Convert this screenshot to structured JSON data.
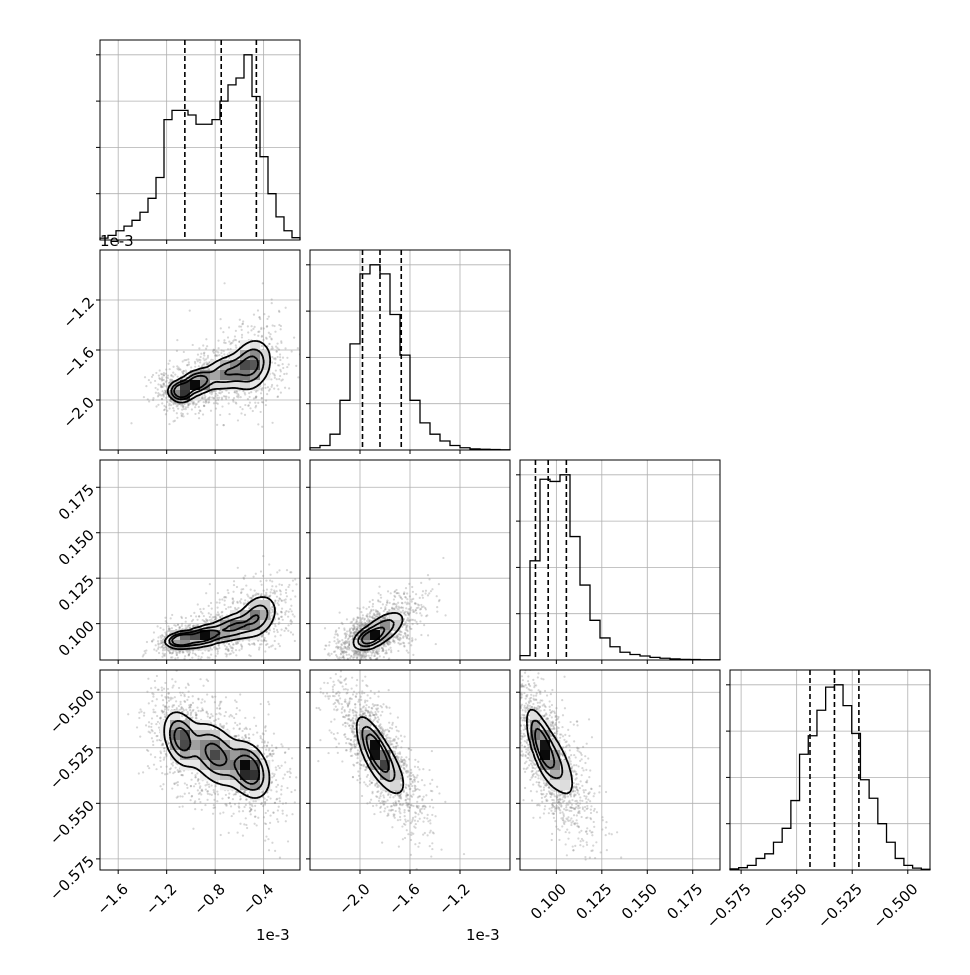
{
  "chart_data": {
    "type": "corner",
    "quantiles_style": "dashed",
    "grid": true,
    "offset_label": "1e-3",
    "params": [
      {
        "index": 0,
        "scale_label": "1e-3",
        "range": [
          -1.75,
          -0.1
        ],
        "ticks": [
          {
            "v": -1.6,
            "label": "−1.6"
          },
          {
            "v": -1.2,
            "label": "−1.2"
          },
          {
            "v": -0.8,
            "label": "−0.8"
          },
          {
            "v": -0.4,
            "label": "−0.4"
          }
        ],
        "hist_values": [
          0.008,
          0.02,
          0.04,
          0.06,
          0.085,
          0.12,
          0.18,
          0.27,
          0.52,
          0.56,
          0.56,
          0.54,
          0.5,
          0.5,
          0.52,
          0.6,
          0.67,
          0.7,
          0.8,
          0.62,
          0.36,
          0.2,
          0.1,
          0.04,
          0.01
        ],
        "quantiles": [
          -1.05,
          -0.75,
          -0.46
        ]
      },
      {
        "index": 1,
        "scale_label": "1e-3",
        "range": [
          -2.4,
          -0.8
        ],
        "ticks": [
          {
            "v": -2.0,
            "label": "−2.0"
          },
          {
            "v": -1.6,
            "label": "−1.6"
          },
          {
            "v": -1.2,
            "label": "−1.2"
          }
        ],
        "hist_values": [
          0.01,
          0.02,
          0.07,
          0.22,
          0.47,
          0.78,
          0.82,
          0.78,
          0.6,
          0.42,
          0.22,
          0.12,
          0.07,
          0.04,
          0.02,
          0.01,
          0.005,
          0.003,
          0.002,
          0.001
        ],
        "quantiles": [
          -1.98,
          -1.84,
          -1.67
        ]
      },
      {
        "index": 2,
        "scale_label": "",
        "range": [
          0.08,
          0.19
        ],
        "ticks": [
          {
            "v": 0.1,
            "label": "0.100"
          },
          {
            "v": 0.125,
            "label": "0.125"
          },
          {
            "v": 0.15,
            "label": "0.150"
          },
          {
            "v": 0.175,
            "label": "0.175"
          }
        ],
        "hist_values": [
          0.02,
          0.45,
          0.82,
          0.81,
          0.84,
          0.56,
          0.34,
          0.18,
          0.1,
          0.06,
          0.035,
          0.025,
          0.018,
          0.012,
          0.008,
          0.005,
          0.003,
          0.002,
          0.001,
          0.001
        ],
        "quantiles": [
          0.0885,
          0.0955,
          0.1055
        ]
      },
      {
        "index": 3,
        "scale_label": "",
        "range": [
          -0.58,
          -0.49
        ],
        "ticks": [
          {
            "v": -0.575,
            "label": "−0.575"
          },
          {
            "v": -0.55,
            "label": "−0.550"
          },
          {
            "v": -0.525,
            "label": "−0.525"
          },
          {
            "v": -0.5,
            "label": "−0.500"
          }
        ],
        "hist_values": [
          0.005,
          0.01,
          0.02,
          0.05,
          0.07,
          0.12,
          0.18,
          0.3,
          0.5,
          0.58,
          0.69,
          0.79,
          0.8,
          0.71,
          0.59,
          0.39,
          0.31,
          0.2,
          0.12,
          0.05,
          0.02,
          0.008,
          0.003
        ],
        "quantiles": [
          -0.544,
          -0.533,
          -0.522
        ]
      }
    ],
    "pairs": [
      {
        "x": 0,
        "y": 1,
        "yticks": [
          {
            "v": -1.2,
            "label": "−1.2"
          },
          {
            "v": -1.6,
            "label": "−1.6"
          },
          {
            "v": -2.0,
            "label": "−2.0"
          }
        ],
        "blobs": [
          {
            "cx": -1.08,
            "cy": -1.93,
            "sx": 0.05,
            "sy": 0.04,
            "rho": 0.0,
            "w": 0.9
          },
          {
            "cx": -0.95,
            "cy": -1.86,
            "sx": 0.07,
            "sy": 0.05,
            "rho": 0.3,
            "w": 0.75
          },
          {
            "cx": -0.7,
            "cy": -1.78,
            "sx": 0.1,
            "sy": 0.07,
            "rho": 0.3,
            "w": 0.45
          },
          {
            "cx": -0.5,
            "cy": -1.72,
            "sx": 0.08,
            "sy": 0.1,
            "rho": 0.2,
            "w": 0.55
          }
        ]
      },
      {
        "x": 0,
        "y": 2,
        "yticks": [
          {
            "v": 0.175,
            "label": "0.175"
          },
          {
            "v": 0.15,
            "label": "0.150"
          },
          {
            "v": 0.125,
            "label": "0.125"
          },
          {
            "v": 0.1,
            "label": "0.100"
          }
        ],
        "blobs": [
          {
            "cx": -1.08,
            "cy": 0.091,
            "sx": 0.06,
            "sy": 0.002,
            "rho": 0.2,
            "w": 0.85
          },
          {
            "cx": -0.9,
            "cy": 0.093,
            "sx": 0.09,
            "sy": 0.003,
            "rho": 0.4,
            "w": 0.6
          },
          {
            "cx": -0.65,
            "cy": 0.098,
            "sx": 0.1,
            "sy": 0.004,
            "rho": 0.4,
            "w": 0.4
          },
          {
            "cx": -0.45,
            "cy": 0.104,
            "sx": 0.08,
            "sy": 0.006,
            "rho": 0.3,
            "w": 0.35
          }
        ]
      },
      {
        "x": 0,
        "y": 3,
        "yticks": [
          {
            "v": -0.5,
            "label": "−0.500"
          },
          {
            "v": -0.525,
            "label": "−0.525"
          },
          {
            "v": -0.55,
            "label": "−0.550"
          },
          {
            "v": -0.575,
            "label": "−0.575"
          }
        ],
        "blobs": [
          {
            "cx": -1.08,
            "cy": -0.521,
            "sx": 0.07,
            "sy": 0.006,
            "rho": -0.3,
            "w": 0.65
          },
          {
            "cx": -0.8,
            "cy": -0.528,
            "sx": 0.11,
            "sy": 0.007,
            "rho": -0.4,
            "w": 0.6
          },
          {
            "cx": -0.52,
            "cy": -0.535,
            "sx": 0.08,
            "sy": 0.006,
            "rho": -0.3,
            "w": 0.8
          }
        ]
      },
      {
        "x": 1,
        "y": 2,
        "blobs": [
          {
            "cx": -1.93,
            "cy": 0.092,
            "sx": 0.06,
            "sy": 0.003,
            "rho": 0.4,
            "w": 0.9
          },
          {
            "cx": -1.82,
            "cy": 0.097,
            "sx": 0.09,
            "sy": 0.005,
            "rho": 0.6,
            "w": 0.65
          }
        ]
      },
      {
        "x": 1,
        "y": 3,
        "blobs": [
          {
            "cx": -1.88,
            "cy": -0.525,
            "sx": 0.07,
            "sy": 0.007,
            "rho": -0.75,
            "w": 0.9
          },
          {
            "cx": -1.82,
            "cy": -0.532,
            "sx": 0.1,
            "sy": 0.008,
            "rho": -0.7,
            "w": 0.55
          }
        ]
      },
      {
        "x": 2,
        "y": 3,
        "blobs": [
          {
            "cx": 0.092,
            "cy": -0.524,
            "sx": 0.004,
            "sy": 0.008,
            "rho": -0.7,
            "w": 0.95
          },
          {
            "cx": 0.099,
            "cy": -0.531,
            "sx": 0.006,
            "sy": 0.009,
            "rho": -0.7,
            "w": 0.5
          }
        ]
      }
    ]
  }
}
